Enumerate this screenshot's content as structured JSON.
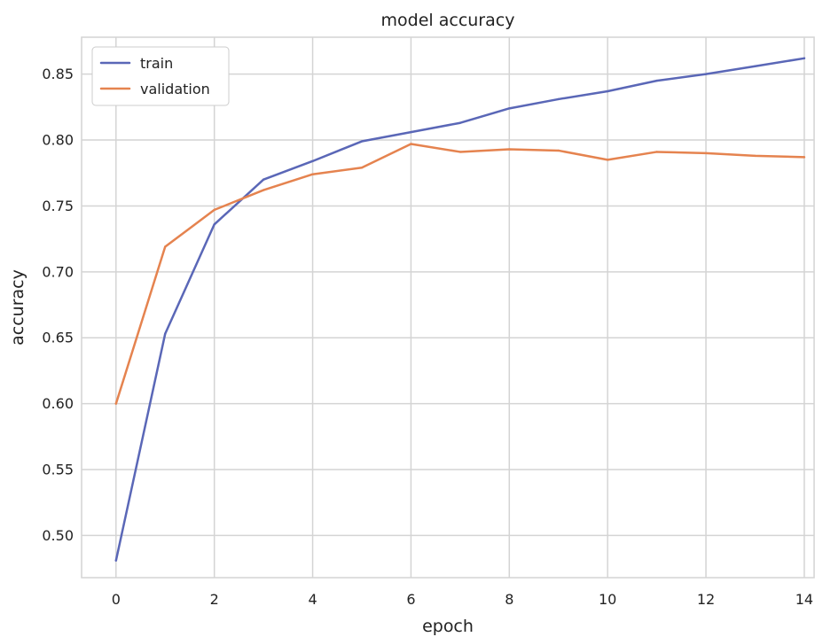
{
  "chart_data": {
    "type": "line",
    "title": "model accuracy",
    "xlabel": "epoch",
    "ylabel": "accuracy",
    "x": [
      0,
      1,
      2,
      3,
      4,
      5,
      6,
      7,
      8,
      9,
      10,
      11,
      12,
      13,
      14
    ],
    "xlim": [
      -0.7,
      14.2
    ],
    "ylim": [
      0.468,
      0.878
    ],
    "x_ticks": [
      0,
      2,
      4,
      6,
      8,
      10,
      12,
      14
    ],
    "x_tick_labels": [
      "0",
      "2",
      "4",
      "6",
      "8",
      "10",
      "12",
      "14"
    ],
    "y_ticks": [
      0.5,
      0.55,
      0.6,
      0.65,
      0.7,
      0.75,
      0.8,
      0.85
    ],
    "y_tick_labels": [
      "0.50",
      "0.55",
      "0.60",
      "0.65",
      "0.70",
      "0.75",
      "0.80",
      "0.85"
    ],
    "x_grid_extra": [
      -0.7
    ],
    "grid": true,
    "legend_position": "top-left",
    "series": [
      {
        "name": "train",
        "color": "#5a67b7",
        "values": [
          0.481,
          0.653,
          0.736,
          0.77,
          0.784,
          0.799,
          0.806,
          0.813,
          0.824,
          0.831,
          0.837,
          0.845,
          0.85,
          0.856,
          0.862
        ]
      },
      {
        "name": "validation",
        "color": "#e5834f",
        "values": [
          0.6,
          0.719,
          0.747,
          0.762,
          0.774,
          0.779,
          0.797,
          0.791,
          0.793,
          0.792,
          0.785,
          0.791,
          0.79,
          0.788,
          0.787
        ]
      }
    ]
  }
}
